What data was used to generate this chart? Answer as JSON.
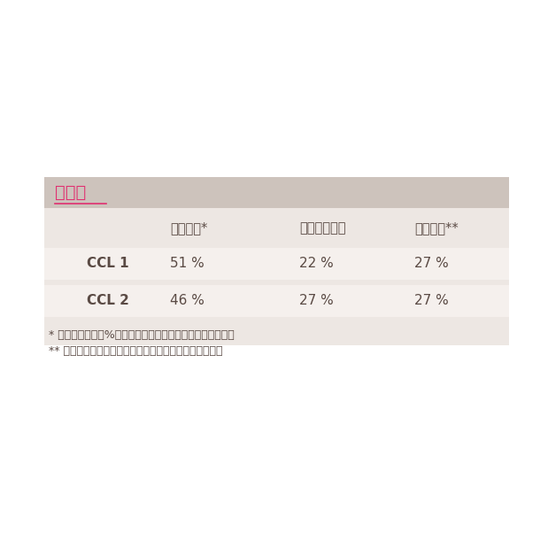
{
  "white_bg": "#ffffff",
  "header_bg": "#cdc3bc",
  "body_bg": "#ede7e3",
  "header_text": "原材料",
  "header_text_color": "#e03070",
  "col_headers": [
    "ナイロン*",
    "ポリウレタン",
    "コットン**"
  ],
  "rows": [
    {
      "label": "CCL 1",
      "values": [
        "51 %",
        "22 %",
        "27 %"
      ]
    },
    {
      "label": "CCL 2",
      "values": [
        "46 %",
        "27 %",
        "27 %"
      ]
    }
  ],
  "footnote1": "* ナイロンの６０%はリサイクル原材料を使用しています。",
  "footnote2": "** コットンはオーガニックコットンを使用しています。",
  "text_color": "#5a4a44",
  "label_color": "#5a4a44"
}
